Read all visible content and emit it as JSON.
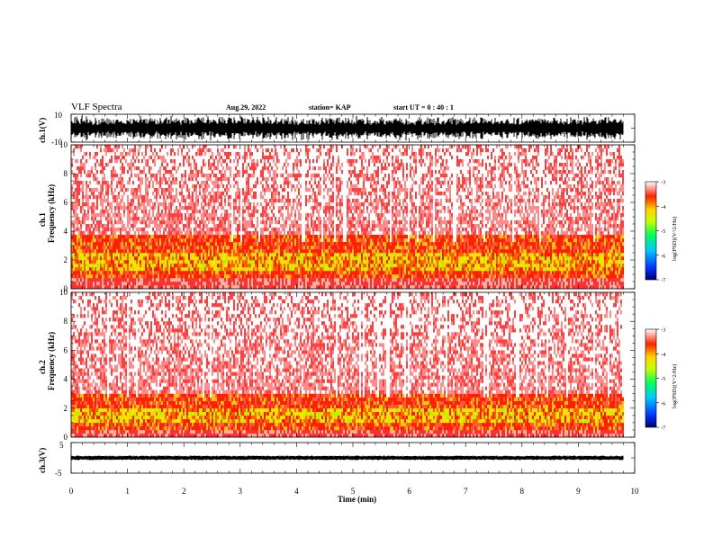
{
  "header": {
    "title": "VLF Spectra",
    "date": "Aug.29, 2022",
    "station": "station= KAP",
    "start": "start UT =   0 : 40 : 1"
  },
  "chart_data": [
    {
      "type": "line",
      "name": "waveform-ch1",
      "ylabel": "ch.1(V)",
      "ylim": [
        -10,
        10
      ],
      "yticks": [
        "10",
        "-10"
      ],
      "xlim": [
        0,
        10
      ]
    },
    {
      "type": "heatmap",
      "name": "spectrogram-ch1",
      "ylabel": "ch.1\nFrequency (kHz)",
      "ylabel_lines": [
        "ch.1",
        "Frequency (kHz)"
      ],
      "ylim": [
        0,
        10
      ],
      "yticks": [
        "0",
        "2",
        "4",
        "6",
        "8",
        "10"
      ],
      "xlim": [
        0,
        9.8
      ],
      "intense_band_khz": [
        0.6,
        3.6
      ],
      "peak_band_khz": [
        1.2,
        2.4
      ],
      "colorbar": {
        "label": "log(PSD)(V^2/Hz)",
        "range": [
          -7,
          -3
        ],
        "ticks": [
          "-3",
          "-4",
          "-5",
          "-6",
          "-7"
        ]
      }
    },
    {
      "type": "heatmap",
      "name": "spectrogram-ch2",
      "ylabel": "ch.2\nFrequency (kHz)",
      "ylabel_lines": [
        "ch.2",
        "Frequency (kHz)"
      ],
      "ylim": [
        0,
        10
      ],
      "yticks": [
        "0",
        "2",
        "4",
        "6",
        "8",
        "10"
      ],
      "xlim": [
        0,
        9.8
      ],
      "intense_band_khz": [
        0.5,
        3.0
      ],
      "peak_band_khz": [
        0.8,
        2.0
      ],
      "colorbar": {
        "label": "log(PSD)(V^2/Hz)",
        "range": [
          -7,
          -3
        ],
        "ticks": [
          "-3",
          "-4",
          "-5",
          "-6",
          "-7"
        ]
      }
    },
    {
      "type": "line",
      "name": "waveform-ch3",
      "ylabel": "ch.3(V)",
      "ylim": [
        -5,
        5
      ],
      "yticks": [
        "5",
        "-5"
      ],
      "xlim": [
        0,
        10
      ],
      "xlabel": "Time (min)",
      "xticks": [
        "0",
        "1",
        "2",
        "3",
        "4",
        "5",
        "6",
        "7",
        "8",
        "9",
        "10"
      ]
    }
  ]
}
